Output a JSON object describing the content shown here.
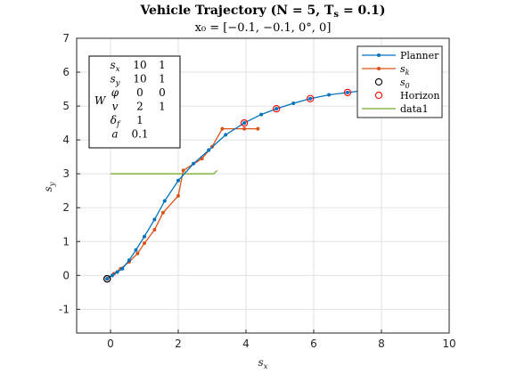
{
  "chart_data": {
    "type": "line",
    "title": "Vehicle Trajectory (N = 5, T_s = 0.1)",
    "subtitle": "x₀ = [−0.1, −0.1, 0°, 0]",
    "xlabel": "s_x",
    "ylabel": "s_y",
    "xlim": [
      -1,
      10
    ],
    "ylim": [
      -1.7,
      7
    ],
    "xticks": [
      "0",
      "2",
      "4",
      "6",
      "8",
      "10"
    ],
    "yticks": [
      "-1",
      "0",
      "1",
      "2",
      "3",
      "4",
      "5",
      "6",
      "7"
    ],
    "grid": true,
    "legend": {
      "placement": "top-right",
      "entries": [
        "Planner",
        "s_k",
        "s_0",
        "Horizon",
        "data1"
      ]
    },
    "series": [
      {
        "name": "Planner",
        "color": "#0072bd",
        "marker": "dot",
        "x": [
          -0.1,
          0.05,
          0.2,
          0.35,
          0.55,
          0.75,
          1.0,
          1.3,
          1.6,
          2.0,
          2.45,
          2.9,
          3.4,
          3.95,
          4.45,
          4.9,
          5.4,
          5.9,
          6.45,
          7.0,
          7.5,
          8.0
        ],
        "y": [
          -0.1,
          0.0,
          0.1,
          0.2,
          0.45,
          0.75,
          1.15,
          1.65,
          2.2,
          2.8,
          3.3,
          3.7,
          4.15,
          4.5,
          4.75,
          4.92,
          5.08,
          5.22,
          5.33,
          5.4,
          5.46,
          5.5
        ]
      },
      {
        "name": "s_k",
        "color": "#d95319",
        "marker": "dot",
        "x": [
          -0.1,
          0.1,
          0.3,
          0.55,
          0.8,
          1.0,
          1.3,
          1.55,
          2.0,
          2.15,
          2.7,
          3.0,
          3.3,
          3.95,
          4.35
        ],
        "y": [
          -0.1,
          0.05,
          0.2,
          0.4,
          0.65,
          0.95,
          1.35,
          1.85,
          2.35,
          3.1,
          3.45,
          3.8,
          4.33,
          4.33,
          4.33
        ]
      },
      {
        "name": "data1",
        "color": "#77ac30",
        "marker": "none",
        "x": [
          0,
          3.05,
          3.15
        ],
        "y": [
          3.0,
          3.0,
          3.1
        ]
      }
    ],
    "s0": {
      "name": "s_0",
      "color": "#000000",
      "x": -0.1,
      "y": -0.1
    },
    "horizon": {
      "name": "Horizon",
      "color": "#ff0000",
      "x": [
        -0.1,
        3.95,
        4.9,
        5.9,
        7.0
      ],
      "y": [
        -0.1,
        4.5,
        4.92,
        5.22,
        5.4
      ]
    },
    "weights_table": {
      "label": "W",
      "rows": [
        {
          "sym": "s_x",
          "a": "10",
          "b": "1"
        },
        {
          "sym": "s_y",
          "a": "10",
          "b": "1"
        },
        {
          "sym": "φ",
          "a": "0",
          "b": "0"
        },
        {
          "sym": "v",
          "a": "2",
          "b": "1"
        },
        {
          "sym": "δ_f",
          "a": "1",
          "b": ""
        },
        {
          "sym": "a",
          "a": "0.1",
          "b": ""
        }
      ]
    }
  }
}
